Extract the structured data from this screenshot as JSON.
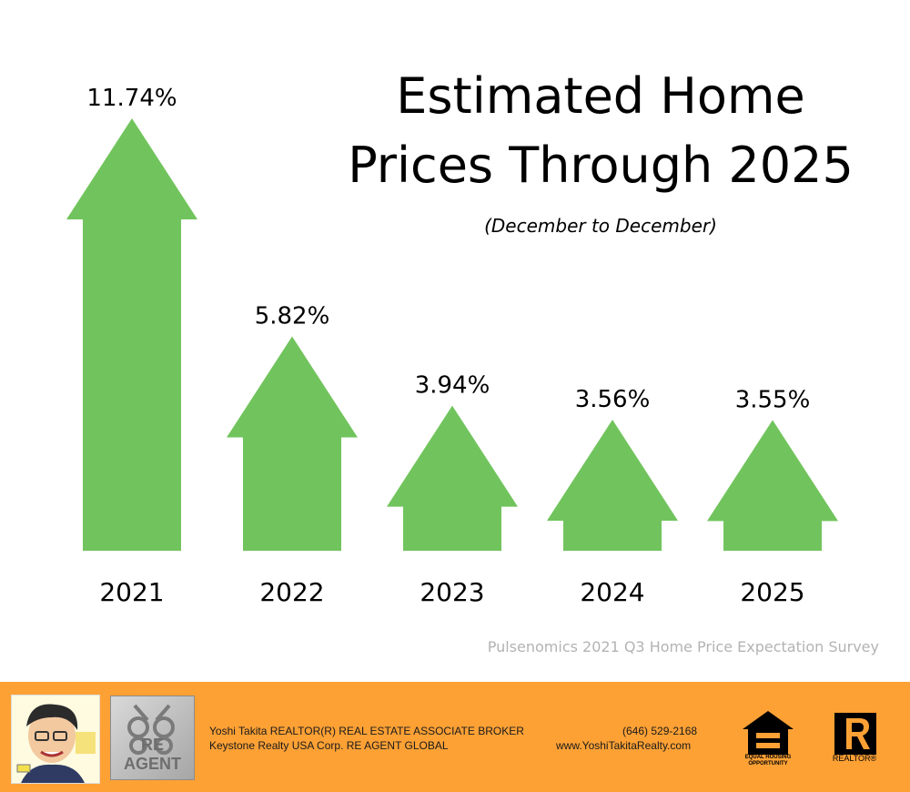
{
  "title_line1": "Estimated Home",
  "title_line2": "Prices Through 2025",
  "subtitle": "(December to December)",
  "source": "Pulsenomics 2021 Q3 Home Price Expectation Survey",
  "colors": {
    "arrow": "#71c45d",
    "footer": "#fda135"
  },
  "chart_data": {
    "type": "bar",
    "categories": [
      "2021",
      "2022",
      "2023",
      "2024",
      "2025"
    ],
    "values": [
      11.74,
      5.82,
      3.94,
      3.56,
      3.55
    ],
    "value_labels": [
      "11.74%",
      "5.82%",
      "3.94%",
      "3.56%",
      "3.55%"
    ],
    "title": "Estimated Home Prices Through 2025",
    "subtitle": "(December to December)",
    "xlabel": "",
    "ylabel": "",
    "grid": false
  },
  "footer": {
    "agent_name": "Yoshi Takita REALTOR(R) REAL ESTATE ASSOCIATE BROKER",
    "company": "Keystone Realty USA Corp.  RE AGENT GLOBAL",
    "phone": "(646) 529-2168",
    "website": "www.YoshiTakitaRealty.com",
    "reagent_logo_text": "RE AGENT",
    "eho_text": "EQUAL HOUSING OPPORTUNITY",
    "realtor_text": "REALTOR®",
    "icons": [
      "agent-caricature",
      "re-agent-keys-logo",
      "equal-housing-icon",
      "realtor-logo-icon"
    ]
  }
}
